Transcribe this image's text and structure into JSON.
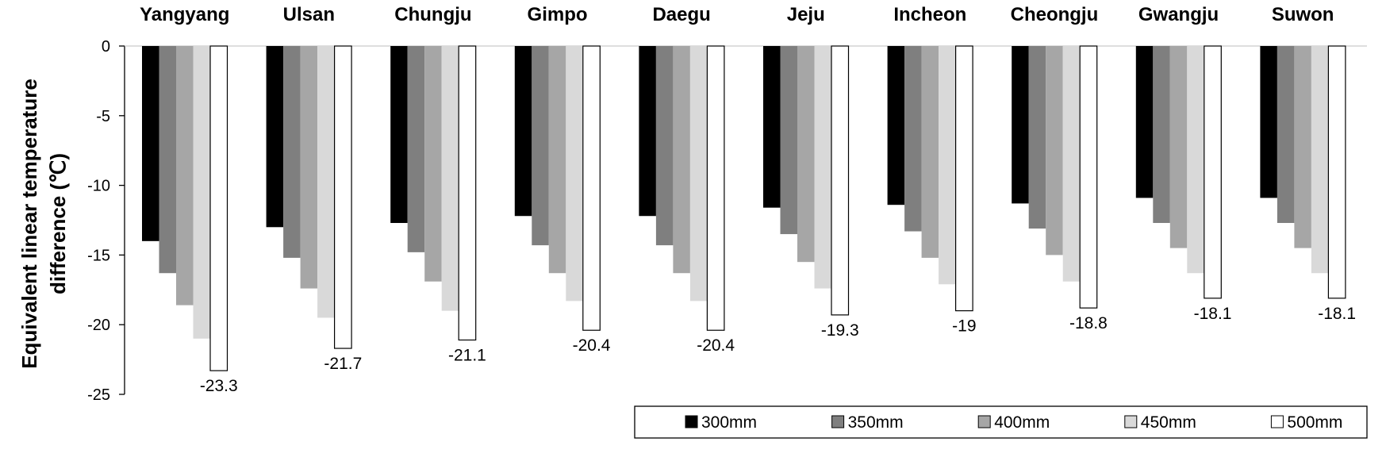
{
  "chart_data": {
    "type": "bar",
    "categories": [
      "Yangyang",
      "Ulsan",
      "Chungju",
      "Gimpo",
      "Daegu",
      "Jeju",
      "Incheon",
      "Cheongju",
      "Gwangju",
      "Suwon"
    ],
    "series": [
      {
        "name": "300mm",
        "color": "#000000",
        "values": [
          -14.0,
          -13.0,
          -12.7,
          -12.2,
          -12.2,
          -11.6,
          -11.4,
          -11.3,
          -10.9,
          -10.9
        ]
      },
      {
        "name": "350mm",
        "color": "#7f7f7f",
        "values": [
          -16.3,
          -15.2,
          -14.8,
          -14.3,
          -14.3,
          -13.5,
          -13.3,
          -13.1,
          -12.7,
          -12.7
        ]
      },
      {
        "name": "400mm",
        "color": "#a6a6a6",
        "values": [
          -18.6,
          -17.4,
          -16.9,
          -16.3,
          -16.3,
          -15.5,
          -15.2,
          -15.0,
          -14.5,
          -14.5
        ]
      },
      {
        "name": "450mm",
        "color": "#d9d9d9",
        "values": [
          -21.0,
          -19.5,
          -19.0,
          -18.3,
          -18.3,
          -17.4,
          -17.1,
          -16.9,
          -16.3,
          -16.3
        ]
      },
      {
        "name": "500mm",
        "color": "#ffffff",
        "values": [
          -23.3,
          -21.7,
          -21.1,
          -20.4,
          -20.4,
          -19.3,
          -19.0,
          -18.8,
          -18.1,
          -18.1
        ]
      }
    ],
    "data_labels": [
      "-23.3",
      "-21.7",
      "-21.1",
      "-20.4",
      "-20.4",
      "-19.3",
      "-19",
      "-18.8",
      "-18.1",
      "-18.1"
    ],
    "ylabel_lines": [
      "Equivalent linear temperature",
      "difference (℃)"
    ],
    "yticks": [
      "0",
      "-5",
      "-10",
      "-15",
      "-20",
      "-25"
    ],
    "ylim": [
      -25,
      0
    ],
    "grid": false,
    "legend_position": "bottom-right"
  }
}
